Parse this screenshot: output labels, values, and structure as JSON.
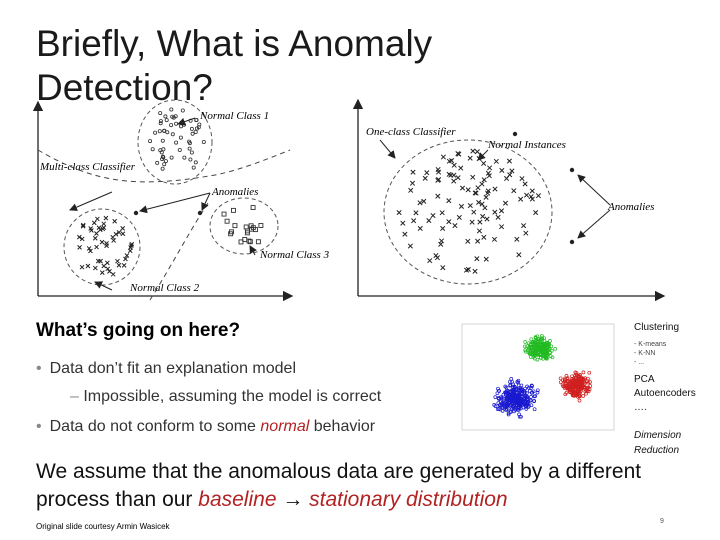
{
  "slide": {
    "title": "Briefly, What is Anomaly Detection?",
    "heading": "What’s going on here?",
    "bullets": [
      {
        "text": "Data don’t fit an explanation model"
      },
      {
        "text_before": "Data do not conform to some ",
        "emphasis": "normal",
        "text_after": " behavior"
      }
    ],
    "sub_bullet": "Impossible, assuming the model is correct",
    "assumption": {
      "line1": "We assume that the anomalous data are generated by a different",
      "line2_before": "process than our ",
      "baseline": "baseline",
      "arrow": " → ",
      "stationary": "stationary distribution"
    },
    "footer": "Original slide courtesy Armin Wasicek",
    "page_number": "9"
  },
  "figure": {
    "left_labels": {
      "normal_class_1": "Normal Class 1",
      "multi_class": "Multi-class Classifier",
      "anomalies": "Anomalies",
      "normal_class_3": "Normal Class 3",
      "normal_class_2": "Normal Class 2"
    },
    "right_labels": {
      "one_class": "One-class Classifier",
      "normal_instances": "Normal Instances",
      "anomalies": "Anomalies"
    }
  },
  "sidebar": {
    "clustering": "Clustering",
    "methods": [
      "- K-means",
      "- K-NN",
      "- ..."
    ],
    "pca": "PCA",
    "autoencoders": "Autoencoders",
    "ellipsis": "….",
    "dim1": "Dimension",
    "dim2": "Reduction"
  },
  "cluster_colors": {
    "green": "#22bb22",
    "blue": "#1a1ad0",
    "red": "#d02020"
  }
}
